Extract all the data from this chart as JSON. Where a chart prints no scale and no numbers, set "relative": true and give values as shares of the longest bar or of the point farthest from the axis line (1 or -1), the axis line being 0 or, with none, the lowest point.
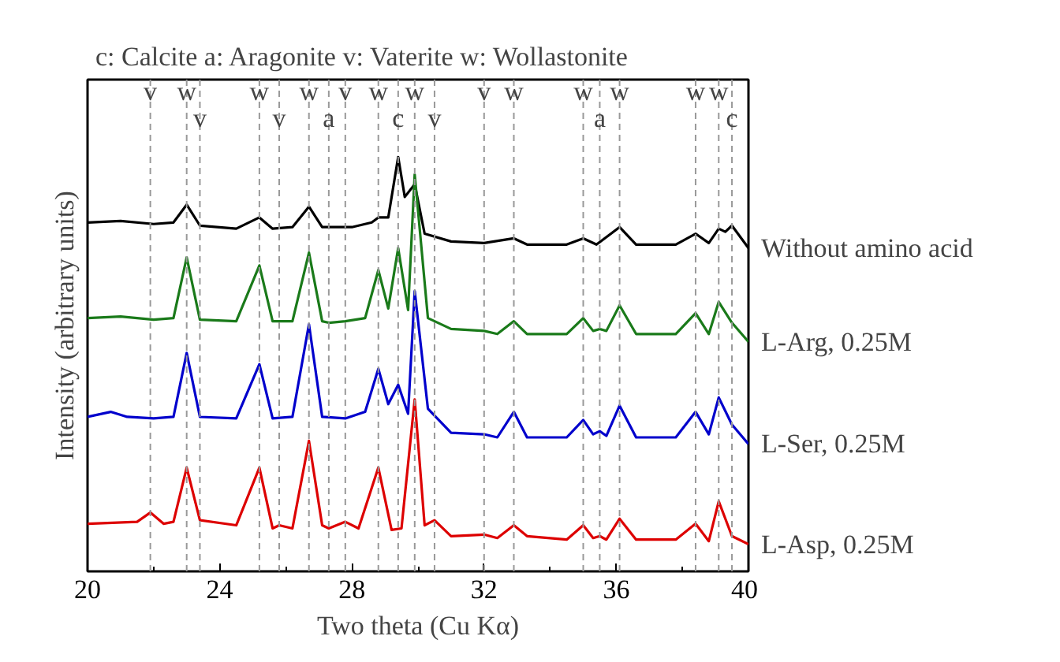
{
  "chart_data": {
    "type": "line",
    "relative": true,
    "title": "c: Calcite   a: Aragonite   v: Vaterite   w: Wollastonite",
    "xlabel": "Two theta (Cu Kα)",
    "ylabel": "Intensity (arbitrary units)",
    "xlim": [
      20,
      40
    ],
    "xticks": [
      20,
      24,
      28,
      32,
      36,
      40
    ],
    "grid": false,
    "legend": false,
    "line_style": "solid",
    "marker": "none",
    "series": [
      {
        "name": "Without amino acid",
        "color": "#000000",
        "x": [
          20,
          21,
          22,
          22.6,
          23.0,
          23.4,
          24.5,
          25.2,
          25.6,
          26.2,
          26.7,
          27.1,
          28.0,
          28.6,
          28.8,
          29.1,
          29.4,
          29.6,
          29.9,
          30.2,
          31,
          32,
          32.9,
          33.3,
          34.5,
          35.0,
          35.4,
          36.1,
          36.6,
          37.8,
          38.4,
          38.8,
          39.1,
          39.3,
          39.5,
          40
        ],
        "values": [
          0.831,
          0.835,
          0.827,
          0.831,
          0.877,
          0.823,
          0.815,
          0.844,
          0.815,
          0.819,
          0.872,
          0.819,
          0.819,
          0.831,
          0.844,
          0.844,
          1.0,
          0.897,
          0.93,
          0.802,
          0.782,
          0.778,
          0.79,
          0.774,
          0.774,
          0.79,
          0.774,
          0.819,
          0.774,
          0.774,
          0.802,
          0.778,
          0.815,
          0.807,
          0.823,
          0.765
        ]
      },
      {
        "name": "L-Arg, 0.25M",
        "color": "#1a7a1a",
        "x": [
          20,
          21,
          22,
          22.6,
          23.0,
          23.4,
          24.5,
          25.2,
          25.6,
          26.2,
          26.7,
          27.1,
          27.3,
          27.8,
          28.4,
          28.8,
          29.1,
          29.4,
          29.7,
          29.9,
          30.3,
          31,
          32.0,
          32.4,
          32.9,
          33.3,
          34.5,
          35.0,
          35.3,
          35.5,
          35.7,
          36.1,
          36.6,
          37.8,
          38.4,
          38.8,
          39.1,
          39.5,
          40
        ],
        "values": [
          0.584,
          0.588,
          0.58,
          0.584,
          0.741,
          0.58,
          0.576,
          0.72,
          0.576,
          0.576,
          0.753,
          0.576,
          0.572,
          0.576,
          0.584,
          0.708,
          0.609,
          0.765,
          0.605,
          0.955,
          0.584,
          0.556,
          0.551,
          0.543,
          0.576,
          0.543,
          0.543,
          0.584,
          0.551,
          0.556,
          0.551,
          0.617,
          0.543,
          0.543,
          0.597,
          0.543,
          0.626,
          0.572,
          0.523
        ]
      },
      {
        "name": "L-Ser, 0.25M",
        "color": "#0000cc",
        "x": [
          20,
          20.7,
          21.2,
          22,
          22.6,
          23.0,
          23.4,
          24.5,
          25.2,
          25.6,
          26.2,
          26.7,
          27.1,
          27.8,
          28.4,
          28.8,
          29.1,
          29.4,
          29.7,
          29.9,
          30.3,
          31,
          32.0,
          32.4,
          32.9,
          33.3,
          34.5,
          35.0,
          35.3,
          35.5,
          35.7,
          36.1,
          36.6,
          37.8,
          38.4,
          38.8,
          39.1,
          39.5,
          40
        ],
        "values": [
          0.329,
          0.342,
          0.329,
          0.325,
          0.329,
          0.494,
          0.329,
          0.325,
          0.465,
          0.325,
          0.329,
          0.568,
          0.329,
          0.325,
          0.342,
          0.453,
          0.362,
          0.412,
          0.337,
          0.654,
          0.35,
          0.288,
          0.284,
          0.276,
          0.342,
          0.276,
          0.276,
          0.321,
          0.284,
          0.292,
          0.28,
          0.358,
          0.276,
          0.276,
          0.342,
          0.284,
          0.379,
          0.309,
          0.259
        ]
      },
      {
        "name": "L-Asp, 0.25M",
        "color": "#dd0000",
        "x": [
          20,
          21.5,
          21.9,
          22.3,
          22.6,
          23.0,
          23.4,
          24.5,
          25.2,
          25.6,
          25.8,
          26.2,
          26.7,
          27.1,
          27.3,
          27.8,
          28.2,
          28.8,
          29.2,
          29.5,
          29.9,
          30.2,
          30.5,
          31,
          32.0,
          32.4,
          32.9,
          33.3,
          34.5,
          35.0,
          35.3,
          35.5,
          35.7,
          36.1,
          36.6,
          37.8,
          38.4,
          38.8,
          39.1,
          39.5,
          40
        ],
        "values": [
          0.053,
          0.058,
          0.082,
          0.053,
          0.058,
          0.198,
          0.062,
          0.049,
          0.198,
          0.041,
          0.049,
          0.041,
          0.267,
          0.049,
          0.041,
          0.058,
          0.041,
          0.198,
          0.037,
          0.041,
          0.374,
          0.049,
          0.062,
          0.021,
          0.025,
          0.016,
          0.049,
          0.021,
          0.012,
          0.049,
          0.016,
          0.021,
          0.012,
          0.066,
          0.012,
          0.012,
          0.053,
          0.008,
          0.111,
          0.021,
          0.0
        ]
      }
    ],
    "ref_lines": [
      {
        "axis": "x",
        "value": 21.9,
        "label": "v",
        "color": "#999999",
        "line_style": "dashed"
      },
      {
        "axis": "x",
        "value": 23.0,
        "label": "w",
        "color": "#999999",
        "line_style": "dashed"
      },
      {
        "axis": "x",
        "value": 23.4,
        "label": "v",
        "color": "#999999",
        "line_style": "dashed"
      },
      {
        "axis": "x",
        "value": 25.2,
        "label": "w",
        "color": "#999999",
        "line_style": "dashed"
      },
      {
        "axis": "x",
        "value": 25.8,
        "label": "v",
        "color": "#999999",
        "line_style": "dashed"
      },
      {
        "axis": "x",
        "value": 26.7,
        "label": "w",
        "color": "#999999",
        "line_style": "dashed"
      },
      {
        "axis": "x",
        "value": 27.3,
        "label": "a",
        "color": "#999999",
        "line_style": "dashed"
      },
      {
        "axis": "x",
        "value": 27.8,
        "label": "v",
        "color": "#999999",
        "line_style": "dashed"
      },
      {
        "axis": "x",
        "value": 28.8,
        "label": "w",
        "color": "#999999",
        "line_style": "dashed"
      },
      {
        "axis": "x",
        "value": 29.4,
        "label": "c",
        "color": "#999999",
        "line_style": "dashed"
      },
      {
        "axis": "x",
        "value": 29.9,
        "label": "w",
        "color": "#999999",
        "line_style": "dashed"
      },
      {
        "axis": "x",
        "value": 30.5,
        "label": "v",
        "color": "#999999",
        "line_style": "dashed"
      },
      {
        "axis": "x",
        "value": 32.0,
        "label": "v",
        "color": "#999999",
        "line_style": "dashed"
      },
      {
        "axis": "x",
        "value": 32.9,
        "label": "w",
        "color": "#999999",
        "line_style": "dashed"
      },
      {
        "axis": "x",
        "value": 35.0,
        "label": "w",
        "color": "#999999",
        "line_style": "dashed"
      },
      {
        "axis": "x",
        "value": 35.5,
        "label": "a",
        "color": "#999999",
        "line_style": "dashed"
      },
      {
        "axis": "x",
        "value": 36.1,
        "label": "w",
        "color": "#999999",
        "line_style": "dashed"
      },
      {
        "axis": "x",
        "value": 38.4,
        "label": "w",
        "color": "#999999",
        "line_style": "dashed"
      },
      {
        "axis": "x",
        "value": 39.1,
        "label": "w",
        "color": "#999999",
        "line_style": "dashed"
      },
      {
        "axis": "x",
        "value": 39.5,
        "label": "c",
        "color": "#999999",
        "line_style": "dashed"
      }
    ]
  }
}
